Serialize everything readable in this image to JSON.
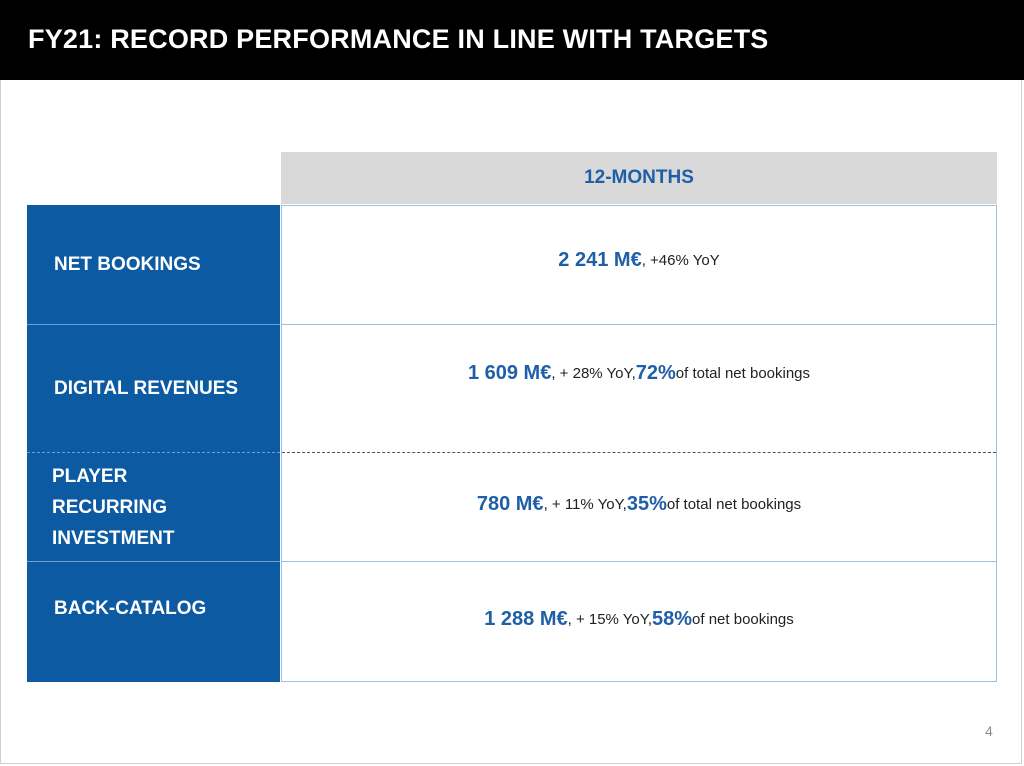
{
  "title": "FY21: RECORD PERFORMANCE IN LINE WITH TARGETS",
  "table": {
    "period_header": "12-MONTHS",
    "rows": [
      {
        "label": "NET BOOKINGS",
        "value_main": "2 241 M€",
        "value_rest": ", +46% YoY"
      },
      {
        "label": "DIGITAL REVENUES",
        "value_main": "1 609 M€",
        "value_mid": ", + 28% YoY, ",
        "value_pct": "72%",
        "value_rest": " of total net bookings"
      },
      {
        "label_lines": [
          "PLAYER",
          "RECURRING",
          "INVESTMENT"
        ],
        "value_main": "780 M€",
        "value_mid": ", + 11% YoY,  ",
        "value_pct": "35%",
        "value_rest": " of total net bookings"
      },
      {
        "label": "BACK-CATALOG",
        "value_main": "1  288 M€",
        "value_mid": ", + 15% YoY, ",
        "value_pct": "58%",
        "value_rest": " of net bookings"
      }
    ]
  },
  "page_number": "4",
  "colors": {
    "title_bar": "#000000",
    "label_column": "#0b5aa2",
    "accent_text": "#1f5fa8",
    "header_fill": "#d9d9d9"
  }
}
